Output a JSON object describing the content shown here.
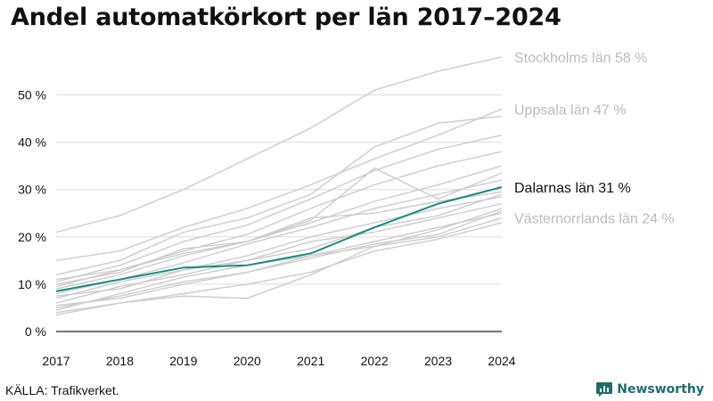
{
  "title": "Andel automatkörkort per län 2017–2024",
  "source": "KÄLLA: Trafikverket.",
  "brand": {
    "name": "Newsworthy",
    "icon": "newsworthy-logo-icon",
    "color": "#1e6e6a"
  },
  "colors": {
    "highlight": "#1a8a80",
    "context": "#cccccc",
    "axis": "#222222",
    "grid": "#dddddd",
    "label_context": "#bbbbbb"
  },
  "chart_data": {
    "type": "line",
    "x": [
      2017,
      2018,
      2019,
      2020,
      2021,
      2022,
      2023,
      2024
    ],
    "ylim": [
      0,
      58
    ],
    "yticks": [
      0,
      10,
      20,
      30,
      40,
      50
    ],
    "ytick_format": "{v} %",
    "grid": "horizontal",
    "labeled_series": [
      {
        "name": "Stockholms län",
        "label": "Stockholms län 58 %",
        "values": [
          21,
          24.5,
          30,
          36.5,
          43,
          51,
          55,
          58
        ],
        "emphasis": false
      },
      {
        "name": "Uppsala län",
        "label": "Uppsala län 47 %",
        "values": [
          15,
          17,
          22,
          26,
          31,
          36.5,
          41.5,
          47
        ],
        "emphasis": false
      },
      {
        "name": "Dalarnas län",
        "label": "Dalarnas län 31 %",
        "values": [
          8.5,
          11,
          13.5,
          14,
          16.5,
          22,
          27,
          30.5
        ],
        "emphasis": true
      },
      {
        "name": "Västernorrlands län",
        "label": "Västernorrlands län 24 %",
        "values": [
          5,
          7.5,
          10.5,
          12.5,
          16,
          18,
          20,
          24
        ],
        "emphasis": false
      }
    ],
    "other_series": [
      [
        12,
        15,
        21,
        24,
        29,
        39,
        44,
        45.5
      ],
      [
        10.5,
        14,
        19,
        22.5,
        28,
        34,
        38.5,
        41.5
      ],
      [
        9.5,
        13,
        17,
        20.5,
        26,
        31,
        35,
        38
      ],
      [
        11,
        13,
        16.5,
        19,
        23.5,
        34.5,
        28,
        33.5
      ],
      [
        9,
        12,
        16,
        19,
        23,
        27.5,
        31,
        35
      ],
      [
        8,
        11,
        14.5,
        18.5,
        22,
        26,
        29,
        32
      ],
      [
        10,
        12.5,
        17.5,
        19,
        24,
        25,
        27.5,
        29.5
      ],
      [
        7,
        10.5,
        13,
        16,
        20,
        23,
        26,
        28.5
      ],
      [
        6,
        9.5,
        12,
        15,
        19,
        21,
        24,
        27
      ],
      [
        4.5,
        8,
        11.5,
        14,
        16,
        19,
        22,
        25
      ],
      [
        5.5,
        7,
        10,
        12.5,
        15.5,
        18.5,
        20.5,
        25.5
      ],
      [
        4,
        6,
        8,
        10,
        12.5,
        17,
        19.5,
        23
      ],
      [
        3.5,
        6,
        7.5,
        7,
        12,
        18,
        21.5,
        26
      ],
      [
        7.5,
        9,
        13,
        15,
        17.5,
        22,
        24.5,
        29
      ]
    ]
  }
}
